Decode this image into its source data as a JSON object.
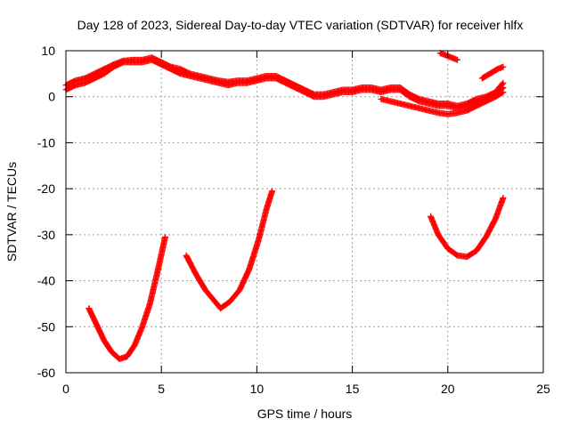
{
  "chart_data": {
    "type": "scatter",
    "title": "Day 128 of 2023, Sidereal Day-to-day VTEC variation (SDTVAR) for receiver hlfx",
    "xlabel": "GPS time / hours",
    "ylabel": "SDTVAR / TECUs",
    "xlim": [
      0,
      25
    ],
    "ylim": [
      -60,
      10
    ],
    "xticks": [
      0,
      5,
      10,
      15,
      20,
      25
    ],
    "yticks": [
      10,
      0,
      -10,
      -20,
      -30,
      -40,
      -50,
      -60
    ],
    "grid": true,
    "marker": "+",
    "color": "#ff0000",
    "series": [
      {
        "name": "upper-band-a",
        "points": [
          [
            0,
            1.5
          ],
          [
            0.5,
            2.5
          ],
          [
            1,
            3
          ],
          [
            1.5,
            4
          ],
          [
            2,
            5
          ],
          [
            2.5,
            6.5
          ],
          [
            3,
            7.5
          ],
          [
            3.5,
            7.5
          ],
          [
            4,
            7.5
          ],
          [
            4.5,
            8
          ],
          [
            5,
            7
          ],
          [
            5.5,
            6
          ],
          [
            6,
            5
          ],
          [
            6.5,
            4.5
          ],
          [
            7,
            4
          ],
          [
            7.5,
            3.5
          ],
          [
            8,
            3
          ],
          [
            8.5,
            2.5
          ],
          [
            9,
            3
          ],
          [
            9.5,
            3
          ],
          [
            10,
            3.5
          ],
          [
            10.5,
            4
          ],
          [
            11,
            4
          ],
          [
            11.5,
            3
          ],
          [
            12,
            2
          ],
          [
            12.5,
            1
          ],
          [
            13,
            0
          ],
          [
            13.5,
            0
          ],
          [
            14,
            0.5
          ],
          [
            14.5,
            1
          ],
          [
            15,
            1
          ],
          [
            15.5,
            1.5
          ],
          [
            16,
            1.5
          ],
          [
            16.5,
            1
          ],
          [
            17,
            1.5
          ],
          [
            17.5,
            1.5
          ],
          [
            18,
            0
          ],
          [
            18.5,
            -1
          ],
          [
            19,
            -1.5
          ],
          [
            19.5,
            -2
          ],
          [
            20,
            -2
          ],
          [
            20.5,
            -2.5
          ],
          [
            21,
            -2
          ],
          [
            21.5,
            -1
          ],
          [
            22,
            -0.5
          ],
          [
            22.5,
            0.5
          ],
          [
            22.9,
            2
          ]
        ]
      },
      {
        "name": "upper-band-b",
        "points": [
          [
            0,
            2.5
          ],
          [
            0.5,
            3.5
          ],
          [
            1,
            4
          ],
          [
            1.5,
            5
          ],
          [
            2,
            6
          ],
          [
            2.5,
            7
          ],
          [
            3,
            7.8
          ],
          [
            3.5,
            8
          ],
          [
            4,
            8
          ],
          [
            4.5,
            8.5
          ],
          [
            5,
            7.5
          ],
          [
            5.5,
            6.5
          ],
          [
            6,
            6
          ],
          [
            6.5,
            5
          ],
          [
            7,
            4.5
          ],
          [
            7.5,
            4
          ],
          [
            8,
            3.5
          ],
          [
            8.5,
            3.2
          ],
          [
            9,
            3.5
          ],
          [
            9.5,
            3.5
          ],
          [
            10,
            4
          ],
          [
            10.5,
            4.5
          ],
          [
            11,
            4.5
          ],
          [
            11.5,
            3.5
          ],
          [
            12,
            2.5
          ],
          [
            12.5,
            1.5
          ],
          [
            13,
            0.5
          ],
          [
            13.5,
            0.5
          ],
          [
            14,
            1
          ],
          [
            14.5,
            1.5
          ],
          [
            15,
            1.5
          ],
          [
            15.5,
            2
          ],
          [
            16,
            2
          ],
          [
            16.5,
            1.5
          ],
          [
            17,
            2
          ],
          [
            17.5,
            2
          ],
          [
            18,
            0.5
          ],
          [
            18.5,
            -0.5
          ],
          [
            19,
            -1
          ],
          [
            19.5,
            -1.5
          ],
          [
            20,
            -1.5
          ],
          [
            20.5,
            -2
          ],
          [
            21,
            -1.5
          ],
          [
            21.5,
            -0.5
          ],
          [
            22,
            0
          ],
          [
            22.5,
            1
          ],
          [
            22.9,
            3
          ]
        ]
      },
      {
        "name": "upper-band-c",
        "points": [
          [
            16.5,
            -0.5
          ],
          [
            17,
            -1
          ],
          [
            17.5,
            -1.5
          ],
          [
            18,
            -2
          ],
          [
            18.5,
            -2.5
          ],
          [
            19,
            -3
          ],
          [
            19.5,
            -3.5
          ],
          [
            20,
            -3.8
          ],
          [
            20.5,
            -3.5
          ],
          [
            21,
            -3
          ],
          [
            21.5,
            -2
          ],
          [
            22,
            -1
          ],
          [
            22.5,
            0
          ],
          [
            22.9,
            1
          ]
        ]
      },
      {
        "name": "upper-fragment-1",
        "points": [
          [
            19.6,
            9.5
          ],
          [
            19.9,
            9
          ],
          [
            20.2,
            8.5
          ],
          [
            20.5,
            8
          ]
        ]
      },
      {
        "name": "upper-fragment-2",
        "points": [
          [
            21.8,
            4
          ],
          [
            22.2,
            5
          ],
          [
            22.6,
            6
          ],
          [
            22.9,
            6.5
          ]
        ]
      },
      {
        "name": "arc-1",
        "points": [
          [
            1.2,
            -46
          ],
          [
            1.6,
            -49.5
          ],
          [
            2,
            -53
          ],
          [
            2.4,
            -55.5
          ],
          [
            2.8,
            -57
          ],
          [
            3.2,
            -56.5
          ],
          [
            3.6,
            -54
          ],
          [
            4,
            -50
          ],
          [
            4.4,
            -45
          ],
          [
            4.8,
            -38
          ],
          [
            5.2,
            -30.5
          ]
        ]
      },
      {
        "name": "arc-2",
        "points": [
          [
            6.3,
            -34.5
          ],
          [
            6.8,
            -38.5
          ],
          [
            7.3,
            -42
          ],
          [
            7.8,
            -44.5
          ],
          [
            8.1,
            -46
          ],
          [
            8.6,
            -44.5
          ],
          [
            9.1,
            -42
          ],
          [
            9.6,
            -37.5
          ],
          [
            10.1,
            -31
          ],
          [
            10.5,
            -24.5
          ],
          [
            10.8,
            -20.5
          ]
        ]
      },
      {
        "name": "arc-3",
        "points": [
          [
            19.1,
            -26
          ],
          [
            19.5,
            -30
          ],
          [
            20,
            -33
          ],
          [
            20.5,
            -34.5
          ],
          [
            21,
            -34.8
          ],
          [
            21.5,
            -33.5
          ],
          [
            22,
            -30.5
          ],
          [
            22.5,
            -26.5
          ],
          [
            22.9,
            -22
          ]
        ]
      }
    ]
  }
}
